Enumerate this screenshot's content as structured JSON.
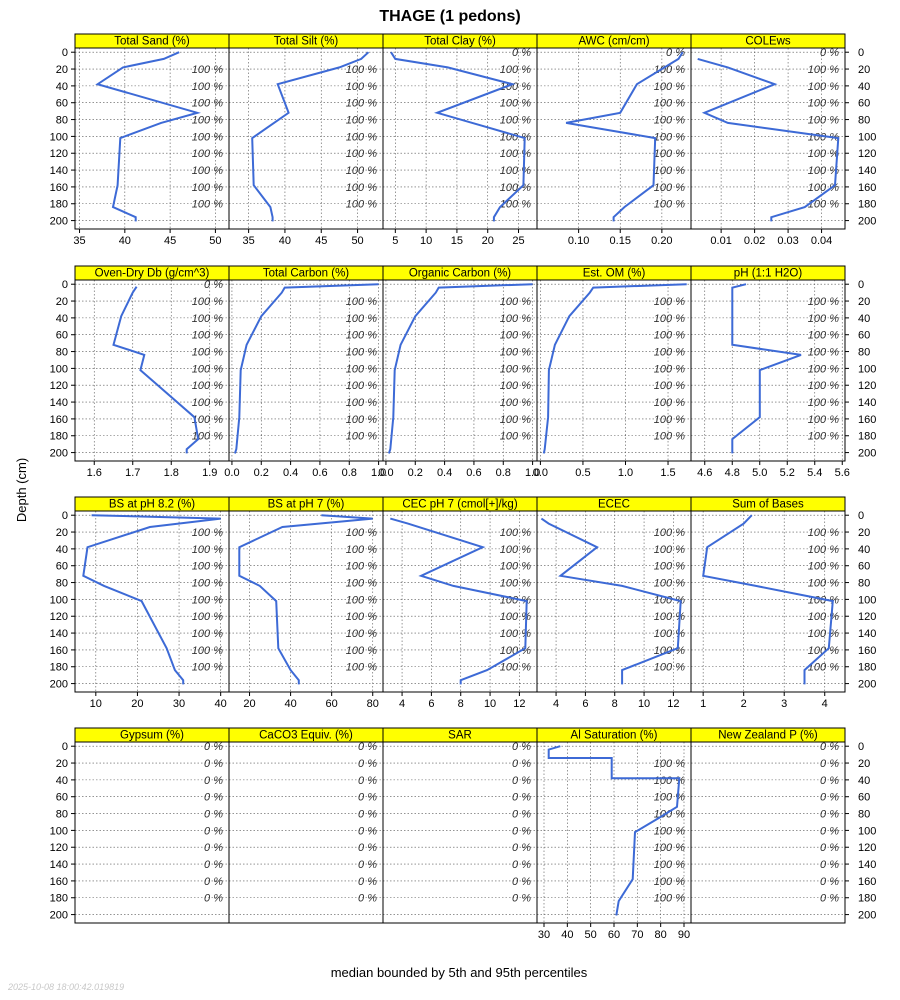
{
  "title": "THAGE (1 pedons)",
  "xlabel": "median bounded by 5th and 95th percentiles",
  "ylabel": "Depth (cm)",
  "timestamp": "2025-10-08 18:00:42.019819",
  "colors": {
    "strip": "#ffff00",
    "line": "#3d6ad6",
    "grid": "#555555",
    "pct": "#333333"
  },
  "chart_data": {
    "type": "line",
    "depth_ticks": [
      0,
      20,
      40,
      60,
      80,
      100,
      120,
      140,
      160,
      180,
      200
    ],
    "ylim": [
      210,
      -5
    ],
    "grid": true,
    "pct_depths": [
      0,
      20,
      40,
      60,
      80,
      100,
      120,
      140,
      160,
      180
    ],
    "panels": [
      {
        "name": "Total Sand (%)",
        "xlim": [
          34.5,
          51.5
        ],
        "ticks": [
          35,
          40,
          45,
          50
        ],
        "tick_labels": [
          "35",
          "40",
          "45",
          "50"
        ],
        "pct": "100 %",
        "pct0": "",
        "profile": [
          [
            46,
            0
          ],
          [
            44.3,
            8
          ],
          [
            39.8,
            18
          ],
          [
            37,
            38
          ],
          [
            48,
            72
          ],
          [
            44,
            84
          ],
          [
            39.5,
            102
          ],
          [
            39.2,
            158
          ],
          [
            38.7,
            184
          ],
          [
            41.2,
            196
          ],
          [
            41.2,
            201
          ]
        ]
      },
      {
        "name": "Total Silt (%)",
        "xlim": [
          32.3,
          53.5
        ],
        "ticks": [
          35,
          40,
          45,
          50
        ],
        "tick_labels": [
          "35",
          "40",
          "45",
          "50"
        ],
        "pct": "100 %",
        "pct0": "",
        "profile": [
          [
            51.5,
            0
          ],
          [
            50.5,
            8
          ],
          [
            47.5,
            18
          ],
          [
            39,
            38
          ],
          [
            40.5,
            72
          ],
          [
            38.5,
            84
          ],
          [
            35.5,
            102
          ],
          [
            35.7,
            158
          ],
          [
            38,
            184
          ],
          [
            38.3,
            196
          ],
          [
            38.3,
            201
          ]
        ]
      },
      {
        "name": "Total Clay (%)",
        "xlim": [
          3,
          28
        ],
        "ticks": [
          5,
          10,
          15,
          20,
          25
        ],
        "tick_labels": [
          "5",
          "10",
          "15",
          "20",
          "25"
        ],
        "pct": "100 %",
        "pct0": "0 %",
        "profile": [
          [
            4.3,
            0
          ],
          [
            5,
            8
          ],
          [
            13.5,
            18
          ],
          [
            24,
            38
          ],
          [
            11.8,
            72
          ],
          [
            17.5,
            84
          ],
          [
            26,
            102
          ],
          [
            25.8,
            158
          ],
          [
            22,
            184
          ],
          [
            21,
            196
          ],
          [
            21,
            201
          ]
        ]
      },
      {
        "name": "AWC (cm/cm)",
        "xlim": [
          0.05,
          0.235
        ],
        "ticks": [
          0.1,
          0.15,
          0.2
        ],
        "tick_labels": [
          "0.10",
          "0.15",
          "0.20"
        ],
        "pct": "100 %",
        "pct0": "0 %",
        "profile": [
          [
            0.225,
            0
          ],
          [
            0.22,
            8
          ],
          [
            0.17,
            38
          ],
          [
            0.15,
            72
          ],
          [
            0.085,
            84
          ],
          [
            0.192,
            102
          ],
          [
            0.19,
            158
          ],
          [
            0.155,
            184
          ],
          [
            0.142,
            196
          ],
          [
            0.142,
            201
          ]
        ]
      },
      {
        "name": "COLEws",
        "xlim": [
          0.001,
          0.047
        ],
        "ticks": [
          0.01,
          0.02,
          0.03,
          0.04
        ],
        "tick_labels": [
          "0.01",
          "0.02",
          "0.03",
          "0.04"
        ],
        "pct": "100 %",
        "pct0": "0 %",
        "profile": [
          [
            0.003,
            8
          ],
          [
            0.012,
            18
          ],
          [
            0.026,
            38
          ],
          [
            0.005,
            72
          ],
          [
            0.012,
            84
          ],
          [
            0.045,
            102
          ],
          [
            0.044,
            158
          ],
          [
            0.035,
            184
          ],
          [
            0.025,
            196
          ],
          [
            0.025,
            201
          ]
        ]
      },
      {
        "name": "Oven-Dry Db (g/cm^3)",
        "xlim": [
          1.55,
          1.95
        ],
        "ticks": [
          1.6,
          1.7,
          1.8,
          1.9
        ],
        "tick_labels": [
          "1.6",
          "1.7",
          "1.8",
          "1.9"
        ],
        "pct": "100 %",
        "pct0": "0 %",
        "profile": [
          [
            1.71,
            3
          ],
          [
            1.7,
            10
          ],
          [
            1.67,
            38
          ],
          [
            1.65,
            72
          ],
          [
            1.73,
            84
          ],
          [
            1.72,
            102
          ],
          [
            1.86,
            158
          ],
          [
            1.87,
            184
          ],
          [
            1.84,
            196
          ],
          [
            1.84,
            201
          ]
        ]
      },
      {
        "name": "Total Carbon (%)",
        "xlim": [
          -0.02,
          1.03
        ],
        "ticks": [
          0,
          0.2,
          0.4,
          0.6,
          0.8,
          1.0
        ],
        "tick_labels": [
          "0.0",
          "0.2",
          "0.4",
          "0.6",
          "0.8",
          "1.0"
        ],
        "pct": "100 %",
        "pct0": "",
        "profile": [
          [
            1.0,
            0
          ],
          [
            0.36,
            4
          ],
          [
            0.34,
            10
          ],
          [
            0.2,
            38
          ],
          [
            0.1,
            72
          ],
          [
            0.06,
            102
          ],
          [
            0.05,
            158
          ],
          [
            0.03,
            196
          ],
          [
            0.02,
            201
          ]
        ]
      },
      {
        "name": "Organic Carbon (%)",
        "xlim": [
          -0.02,
          1.03
        ],
        "ticks": [
          0,
          0.2,
          0.4,
          0.6,
          0.8,
          1.0
        ],
        "tick_labels": [
          "0.0",
          "0.2",
          "0.4",
          "0.6",
          "0.8",
          "1.0"
        ],
        "pct": "100 %",
        "pct0": "",
        "profile": [
          [
            1.0,
            0
          ],
          [
            0.36,
            4
          ],
          [
            0.34,
            10
          ],
          [
            0.2,
            38
          ],
          [
            0.1,
            72
          ],
          [
            0.06,
            102
          ],
          [
            0.05,
            158
          ],
          [
            0.03,
            196
          ],
          [
            0.02,
            201
          ]
        ]
      },
      {
        "name": "Est. OM (%)",
        "xlim": [
          -0.04,
          1.77
        ],
        "ticks": [
          0,
          0.5,
          1.0,
          1.5
        ],
        "tick_labels": [
          "0.0",
          "0.5",
          "1.0",
          "1.5"
        ],
        "pct": "100 %",
        "pct0": "",
        "profile": [
          [
            1.72,
            0
          ],
          [
            0.62,
            4
          ],
          [
            0.58,
            10
          ],
          [
            0.34,
            38
          ],
          [
            0.17,
            72
          ],
          [
            0.1,
            102
          ],
          [
            0.09,
            158
          ],
          [
            0.05,
            196
          ],
          [
            0.04,
            201
          ]
        ]
      },
      {
        "name": "pH (1:1 H2O)",
        "xlim": [
          4.5,
          5.62
        ],
        "ticks": [
          4.6,
          4.8,
          5.0,
          5.2,
          5.4,
          5.6
        ],
        "tick_labels": [
          "4.6",
          "4.8",
          "5.0",
          "5.2",
          "5.4",
          "5.6"
        ],
        "pct": "100 %",
        "pct0": "",
        "profile": [
          [
            4.9,
            0
          ],
          [
            4.8,
            4
          ],
          [
            4.8,
            72
          ],
          [
            5.3,
            84
          ],
          [
            5.0,
            102
          ],
          [
            5.0,
            158
          ],
          [
            4.8,
            184
          ],
          [
            4.8,
            201
          ]
        ]
      },
      {
        "name": "BS at pH 8.2 (%)",
        "xlim": [
          5,
          42
        ],
        "ticks": [
          10,
          20,
          30,
          40
        ],
        "tick_labels": [
          "10",
          "20",
          "30",
          "40"
        ],
        "pct": "100 %",
        "pct0": "",
        "profile": [
          [
            9,
            0
          ],
          [
            40,
            4
          ],
          [
            23,
            14
          ],
          [
            8,
            38
          ],
          [
            7,
            72
          ],
          [
            12,
            84
          ],
          [
            21,
            102
          ],
          [
            27,
            158
          ],
          [
            29,
            184
          ],
          [
            31,
            196
          ],
          [
            31,
            201
          ]
        ]
      },
      {
        "name": "BS at pH 7 (%)",
        "xlim": [
          10,
          85
        ],
        "ticks": [
          20,
          40,
          60,
          80
        ],
        "tick_labels": [
          "20",
          "40",
          "60",
          "80"
        ],
        "pct": "100 %",
        "pct0": "",
        "profile": [
          [
            55,
            0
          ],
          [
            80,
            4
          ],
          [
            36,
            14
          ],
          [
            15,
            38
          ],
          [
            15,
            72
          ],
          [
            25,
            84
          ],
          [
            33,
            102
          ],
          [
            34,
            158
          ],
          [
            40,
            184
          ],
          [
            44,
            196
          ],
          [
            44,
            201
          ]
        ]
      },
      {
        "name": "CEC pH 7 (cmol[+]/kg)",
        "xlim": [
          2.7,
          13.2
        ],
        "ticks": [
          4,
          6,
          8,
          10,
          12
        ],
        "tick_labels": [
          "4",
          "6",
          "8",
          "10",
          "12"
        ],
        "pct": "100 %",
        "pct0": "",
        "profile": [
          [
            3.2,
            4
          ],
          [
            4.4,
            10
          ],
          [
            9.5,
            38
          ],
          [
            5.3,
            72
          ],
          [
            7.5,
            84
          ],
          [
            12.5,
            102
          ],
          [
            12.4,
            158
          ],
          [
            9.8,
            184
          ],
          [
            8,
            196
          ],
          [
            8,
            201
          ]
        ]
      },
      {
        "name": "ECEC",
        "xlim": [
          2.7,
          13.2
        ],
        "ticks": [
          4,
          6,
          8,
          10,
          12
        ],
        "tick_labels": [
          "4",
          "6",
          "8",
          "10",
          "12"
        ],
        "pct": "100 %",
        "pct0": "",
        "profile": [
          [
            3,
            4
          ],
          [
            3.5,
            10
          ],
          [
            6.8,
            38
          ],
          [
            4.3,
            72
          ],
          [
            8.5,
            84
          ],
          [
            12.5,
            102
          ],
          [
            12.3,
            158
          ],
          [
            8.5,
            184
          ],
          [
            8.5,
            201
          ]
        ]
      },
      {
        "name": "Sum of Bases",
        "xlim": [
          0.7,
          4.5
        ],
        "ticks": [
          1,
          2,
          3,
          4
        ],
        "tick_labels": [
          "1",
          "2",
          "3",
          "4"
        ],
        "pct": "100 %",
        "pct0": "",
        "profile": [
          [
            2.2,
            0
          ],
          [
            2.0,
            10
          ],
          [
            1.1,
            38
          ],
          [
            1.0,
            72
          ],
          [
            2.3,
            84
          ],
          [
            4.2,
            102
          ],
          [
            4.1,
            158
          ],
          [
            3.5,
            184
          ],
          [
            3.5,
            201
          ]
        ]
      },
      {
        "name": "Gypsum (%)",
        "xlim": [
          0,
          1
        ],
        "ticks": [],
        "tick_labels": [],
        "pct": "0 %",
        "pct0": "0 %",
        "profile": []
      },
      {
        "name": "CaCO3 Equiv. (%)",
        "xlim": [
          0,
          1
        ],
        "ticks": [],
        "tick_labels": [],
        "pct": "0 %",
        "pct0": "0 %",
        "profile": []
      },
      {
        "name": "SAR",
        "xlim": [
          0,
          1
        ],
        "ticks": [],
        "tick_labels": [],
        "pct": "0 %",
        "pct0": "0 %",
        "profile": []
      },
      {
        "name": "Al Saturation (%)",
        "xlim": [
          27,
          93
        ],
        "ticks": [
          30,
          40,
          50,
          60,
          70,
          80,
          90
        ],
        "tick_labels": [
          "30",
          "40",
          "50",
          "60",
          "70",
          "80",
          "90"
        ],
        "pct": "100 %",
        "pct0": "",
        "profile": [
          [
            37,
            0
          ],
          [
            32,
            4
          ],
          [
            32,
            14
          ],
          [
            59,
            14
          ],
          [
            59,
            38
          ],
          [
            88,
            38
          ],
          [
            87,
            72
          ],
          [
            80,
            84
          ],
          [
            69,
            102
          ],
          [
            68,
            158
          ],
          [
            62,
            184
          ],
          [
            61,
            201
          ]
        ]
      },
      {
        "name": "New Zealand P (%)",
        "xlim": [
          0,
          1
        ],
        "ticks": [],
        "tick_labels": [],
        "pct": "0 %",
        "pct0": "0 %",
        "profile": []
      }
    ]
  }
}
